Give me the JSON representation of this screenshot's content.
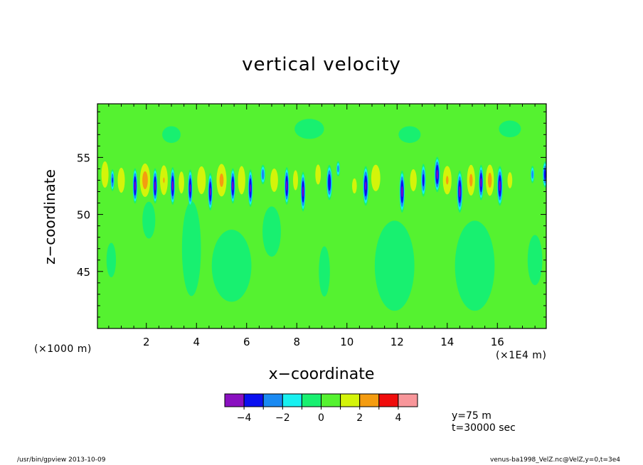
{
  "chart_data": {
    "type": "heatmap",
    "title": "vertical velocity",
    "xlabel": "x−coordinate",
    "ylabel": "z−coordinate",
    "x_units_left": "(×1000 m)",
    "x_units_right": "(×1E4 m)",
    "xlim": [
      0.05,
      17.95
    ],
    "ylim": [
      40.0,
      59.7
    ],
    "x_ticks": [
      2,
      4,
      6,
      8,
      10,
      12,
      14,
      16
    ],
    "x_tick_labels": [
      "2",
      "4",
      "6",
      "8",
      "10",
      "12",
      "14",
      "16"
    ],
    "y_ticks": [
      45,
      50,
      55
    ],
    "y_tick_labels": [
      "45",
      "50",
      "55"
    ],
    "x_minor_step": 0.5,
    "y_minor_step": 1,
    "background_level": 0.3,
    "background_color": "#55f230",
    "levels": [
      -5,
      -4,
      -3,
      -2,
      -1,
      0,
      1,
      2,
      3,
      4,
      5
    ],
    "colorbar": {
      "colors": [
        "#8a10c0",
        "#0a10f0",
        "#1a8af2",
        "#18f0f0",
        "#18f070",
        "#55f230",
        "#d4f40a",
        "#f49c10",
        "#f00c0c",
        "#f8969a"
      ],
      "tick_values": [
        -4,
        -2,
        0,
        2,
        4
      ],
      "tick_labels": [
        "−4",
        "−2",
        "0",
        "2",
        "4"
      ]
    },
    "features": [
      {
        "x": 0.35,
        "z": 53.5,
        "rx": 0.22,
        "rz": 1.8,
        "v": 1.5
      },
      {
        "x": 0.65,
        "z": 53.0,
        "rx": 0.08,
        "rz": 1.0,
        "v": -3.2
      },
      {
        "x": 1.0,
        "z": 53.0,
        "rx": 0.22,
        "rz": 1.7,
        "v": 1.5
      },
      {
        "x": 1.55,
        "z": 52.5,
        "rx": 0.1,
        "rz": 1.6,
        "v": -4.3
      },
      {
        "x": 1.95,
        "z": 53.0,
        "rx": 0.25,
        "rz": 1.8,
        "v": 2.4
      },
      {
        "x": 2.35,
        "z": 52.5,
        "rx": 0.1,
        "rz": 1.6,
        "v": -4.3
      },
      {
        "x": 2.7,
        "z": 53.0,
        "rx": 0.2,
        "rz": 1.7,
        "v": 2.0
      },
      {
        "x": 3.05,
        "z": 52.5,
        "rx": 0.1,
        "rz": 1.7,
        "v": -4.3
      },
      {
        "x": 3.4,
        "z": 52.8,
        "rx": 0.18,
        "rz": 1.6,
        "v": 1.4
      },
      {
        "x": 3.75,
        "z": 52.3,
        "rx": 0.1,
        "rz": 1.7,
        "v": -4.2
      },
      {
        "x": 4.2,
        "z": 53.0,
        "rx": 0.25,
        "rz": 1.8,
        "v": 1.6
      },
      {
        "x": 4.55,
        "z": 52.0,
        "rx": 0.1,
        "rz": 1.7,
        "v": -4.2
      },
      {
        "x": 5.0,
        "z": 53.0,
        "rx": 0.25,
        "rz": 1.8,
        "v": 2.2
      },
      {
        "x": 5.45,
        "z": 52.5,
        "rx": 0.1,
        "rz": 1.6,
        "v": -4.3
      },
      {
        "x": 5.8,
        "z": 53.0,
        "rx": 0.2,
        "rz": 1.7,
        "v": 1.8
      },
      {
        "x": 6.15,
        "z": 52.3,
        "rx": 0.1,
        "rz": 1.7,
        "v": -4.2
      },
      {
        "x": 6.65,
        "z": 53.5,
        "rx": 0.1,
        "rz": 0.9,
        "v": -2.8
      },
      {
        "x": 7.1,
        "z": 53.0,
        "rx": 0.25,
        "rz": 1.7,
        "v": 1.4
      },
      {
        "x": 7.6,
        "z": 52.5,
        "rx": 0.1,
        "rz": 1.7,
        "v": -4.3
      },
      {
        "x": 7.95,
        "z": 53.0,
        "rx": 0.18,
        "rz": 1.6,
        "v": 1.3
      },
      {
        "x": 8.25,
        "z": 52.0,
        "rx": 0.1,
        "rz": 1.8,
        "v": -4.3
      },
      {
        "x": 8.85,
        "z": 53.5,
        "rx": 0.2,
        "rz": 1.6,
        "v": 1.3
      },
      {
        "x": 9.3,
        "z": 52.8,
        "rx": 0.12,
        "rz": 1.6,
        "v": -3.9
      },
      {
        "x": 9.65,
        "z": 54.0,
        "rx": 0.08,
        "rz": 0.7,
        "v": -2.6
      },
      {
        "x": 10.3,
        "z": 52.5,
        "rx": 0.2,
        "rz": 1.4,
        "v": 1.2
      },
      {
        "x": 10.75,
        "z": 52.5,
        "rx": 0.12,
        "rz": 1.8,
        "v": -4.2
      },
      {
        "x": 11.15,
        "z": 53.2,
        "rx": 0.28,
        "rz": 1.8,
        "v": 1.5
      },
      {
        "x": 12.2,
        "z": 52.0,
        "rx": 0.11,
        "rz": 1.9,
        "v": -4.3
      },
      {
        "x": 12.65,
        "z": 53.0,
        "rx": 0.22,
        "rz": 1.6,
        "v": 1.4
      },
      {
        "x": 13.05,
        "z": 53.0,
        "rx": 0.1,
        "rz": 1.5,
        "v": -3.5
      },
      {
        "x": 13.6,
        "z": 53.5,
        "rx": 0.12,
        "rz": 1.6,
        "v": -4.3
      },
      {
        "x": 14.0,
        "z": 53.0,
        "rx": 0.22,
        "rz": 1.6,
        "v": 2.1
      },
      {
        "x": 14.5,
        "z": 52.0,
        "rx": 0.12,
        "rz": 1.9,
        "v": -4.3
      },
      {
        "x": 14.95,
        "z": 53.0,
        "rx": 0.2,
        "rz": 1.7,
        "v": 2.2
      },
      {
        "x": 15.35,
        "z": 52.8,
        "rx": 0.1,
        "rz": 1.6,
        "v": -4.3
      },
      {
        "x": 15.7,
        "z": 53.0,
        "rx": 0.2,
        "rz": 1.7,
        "v": 2.3
      },
      {
        "x": 16.1,
        "z": 52.5,
        "rx": 0.12,
        "rz": 1.8,
        "v": -4.3
      },
      {
        "x": 16.5,
        "z": 53.0,
        "rx": 0.2,
        "rz": 1.5,
        "v": 1.2
      },
      {
        "x": 17.4,
        "z": 53.5,
        "rx": 0.08,
        "rz": 0.8,
        "v": -2.6
      },
      {
        "x": 17.9,
        "z": 53.5,
        "rx": 0.1,
        "rz": 1.2,
        "v": -3.6
      },
      {
        "x": 0.6,
        "z": 46.0,
        "rx": 0.25,
        "rz": 2.0,
        "v": -0.4
      },
      {
        "x": 2.1,
        "z": 49.5,
        "rx": 0.35,
        "rz": 2.2,
        "v": -0.35
      },
      {
        "x": 3.8,
        "z": 47.0,
        "rx": 0.5,
        "rz": 5.5,
        "v": -0.4
      },
      {
        "x": 5.4,
        "z": 45.5,
        "rx": 1.0,
        "rz": 4.0,
        "v": -0.5
      },
      {
        "x": 7.0,
        "z": 48.5,
        "rx": 0.5,
        "rz": 3.0,
        "v": -0.35
      },
      {
        "x": 9.1,
        "z": 45.0,
        "rx": 0.3,
        "rz": 3.0,
        "v": -0.35
      },
      {
        "x": 11.9,
        "z": 45.5,
        "rx": 1.0,
        "rz": 5.0,
        "v": -0.5
      },
      {
        "x": 15.1,
        "z": 45.5,
        "rx": 1.0,
        "rz": 5.0,
        "v": -0.5
      },
      {
        "x": 17.5,
        "z": 46.0,
        "rx": 0.4,
        "rz": 3.0,
        "v": -0.35
      },
      {
        "x": 3.0,
        "z": 57.0,
        "rx": 0.5,
        "rz": 1.0,
        "v": -0.35
      },
      {
        "x": 8.5,
        "z": 57.5,
        "rx": 0.8,
        "rz": 1.2,
        "v": -0.35
      },
      {
        "x": 12.5,
        "z": 57.0,
        "rx": 0.6,
        "rz": 1.0,
        "v": -0.35
      },
      {
        "x": 16.5,
        "z": 57.5,
        "rx": 0.6,
        "rz": 1.0,
        "v": -0.35
      }
    ],
    "info_lines": [
      "y=75 m",
      "t=30000 sec"
    ],
    "footer_left": "/usr/bin/gpview 2013-10-09",
    "footer_right": "venus-ba1998_VelZ.nc@VelZ,y=0,t=3e4"
  }
}
